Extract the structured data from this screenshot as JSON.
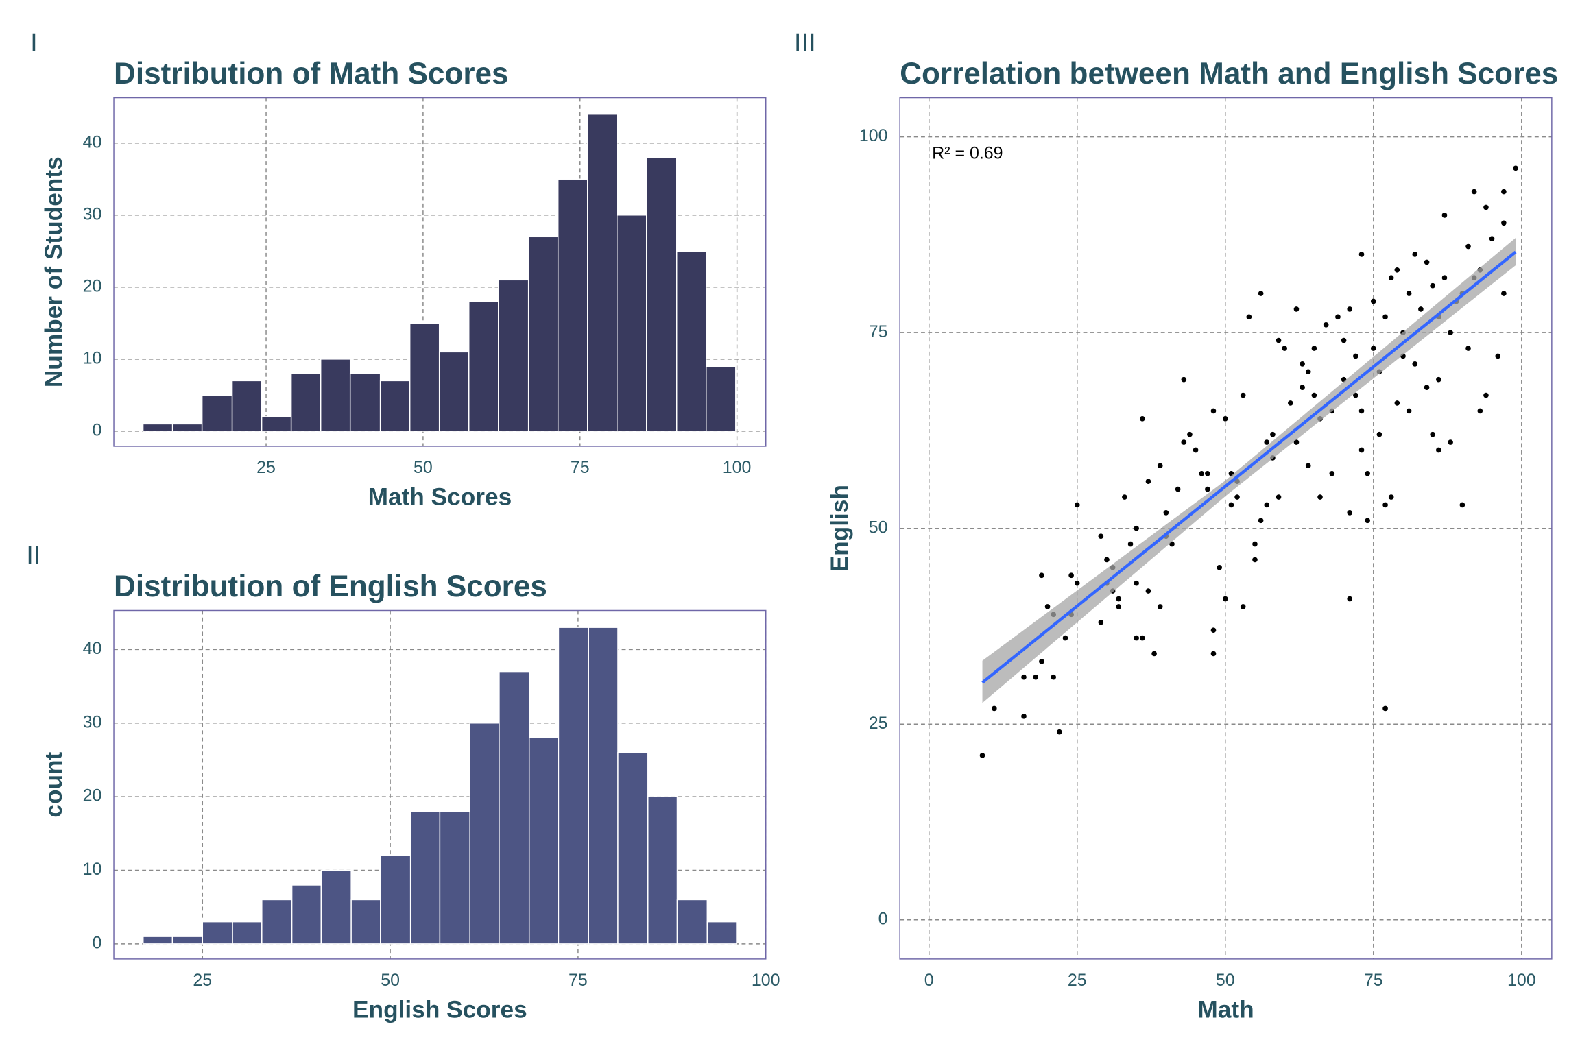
{
  "chart_data": [
    {
      "type": "histogram",
      "tag": "I",
      "title": "Distribution of Math Scores",
      "x_label": "Math Scores",
      "y_label": "Number of Students",
      "color": "#393a5e",
      "bins": [
        5.4,
        10.1,
        14.8,
        19.6,
        24.3,
        29.0,
        33.7,
        38.4,
        43.2,
        47.9,
        52.6,
        57.3,
        62.0,
        66.8,
        71.5,
        76.2,
        80.9,
        85.6,
        90.4,
        95.1,
        99.8
      ],
      "values": [
        1,
        1,
        5,
        7,
        2,
        8,
        10,
        8,
        7,
        15,
        11,
        18,
        21,
        27,
        35,
        44,
        30,
        38,
        25,
        9
      ],
      "xlim": [
        0.75,
        104.6
      ],
      "ylim": [
        -2.1,
        46.3
      ],
      "xticks": [
        25,
        50,
        75,
        100
      ],
      "yticks": [
        0,
        10,
        20,
        30,
        40
      ],
      "grid": true
    },
    {
      "type": "histogram",
      "tag": "II",
      "title": "Distribution of English Scores",
      "x_label": "English Scores",
      "y_label": "count",
      "color": "#4d5584",
      "bins": [
        17.1,
        21.0,
        25.0,
        29.0,
        32.9,
        36.9,
        40.8,
        44.8,
        48.7,
        52.7,
        56.6,
        60.6,
        64.5,
        68.5,
        72.4,
        76.4,
        80.3,
        84.3,
        88.2,
        92.2,
        96.1
      ],
      "values": [
        1,
        1,
        3,
        3,
        6,
        8,
        10,
        6,
        12,
        18,
        18,
        30,
        37,
        28,
        43,
        43,
        26,
        20,
        6,
        3
      ],
      "xlim": [
        13.2,
        100
      ],
      "ylim": [
        -2.05,
        45.3
      ],
      "xticks": [
        25,
        50,
        75,
        100
      ],
      "yticks": [
        0,
        10,
        20,
        30,
        40
      ],
      "grid": true
    },
    {
      "type": "scatter",
      "tag": "III",
      "title": "Correlation between Math and English Scores",
      "x_label": "Math",
      "y_label": "English",
      "color": "#000000",
      "annotation": "R² = 0.69",
      "x": [
        9,
        11,
        16,
        16,
        18,
        19,
        19,
        20,
        21,
        21,
        22,
        23,
        24,
        24,
        25,
        25,
        29,
        29,
        30,
        30,
        31,
        31,
        32,
        32,
        33,
        34,
        35,
        35,
        35,
        36,
        36,
        37,
        37,
        38,
        39,
        39,
        40,
        40,
        41,
        42,
        43,
        43,
        44,
        45,
        46,
        47,
        47,
        48,
        48,
        48,
        49,
        50,
        50,
        51,
        51,
        52,
        52,
        53,
        53,
        54,
        55,
        55,
        56,
        56,
        57,
        57,
        58,
        58,
        59,
        59,
        60,
        61,
        62,
        62,
        63,
        63,
        64,
        64,
        65,
        65,
        66,
        66,
        67,
        68,
        68,
        69,
        70,
        70,
        71,
        71,
        71,
        72,
        72,
        73,
        73,
        73,
        74,
        74,
        75,
        75,
        76,
        76,
        77,
        77,
        77,
        78,
        78,
        79,
        79,
        80,
        80,
        81,
        81,
        82,
        82,
        83,
        84,
        84,
        85,
        85,
        86,
        86,
        86,
        87,
        87,
        88,
        88,
        89,
        90,
        90,
        91,
        91,
        92,
        92,
        93,
        93,
        94,
        94,
        95,
        96,
        97,
        97,
        97,
        99
      ],
      "y": [
        21,
        27,
        26,
        31,
        31,
        33,
        44,
        40,
        39,
        31,
        24,
        36,
        39,
        44,
        53,
        43,
        38,
        49,
        43,
        46,
        42,
        45,
        41,
        40,
        54,
        48,
        50,
        36,
        43,
        36,
        64,
        42,
        56,
        34,
        58,
        40,
        49,
        52,
        48,
        55,
        69,
        61,
        62,
        60,
        57,
        55,
        57,
        65,
        37,
        34,
        45,
        64,
        41,
        53,
        57,
        54,
        56,
        40,
        67,
        77,
        46,
        48,
        80,
        51,
        61,
        53,
        62,
        59,
        54,
        74,
        73,
        66,
        78,
        61,
        68,
        71,
        70,
        58,
        67,
        73,
        54,
        64,
        76,
        65,
        57,
        77,
        69,
        74,
        41,
        52,
        78,
        72,
        67,
        85,
        65,
        60,
        51,
        57,
        79,
        73,
        70,
        62,
        27,
        53,
        77,
        82,
        54,
        83,
        66,
        75,
        72,
        80,
        65,
        71,
        85,
        78,
        84,
        68,
        81,
        62,
        77,
        69,
        60,
        90,
        82,
        75,
        61,
        79,
        53,
        80,
        86,
        73,
        93,
        82,
        83,
        65,
        67,
        91,
        87,
        72,
        80,
        93,
        89,
        96
      ],
      "fit": {
        "color": "#3366ff",
        "x": [
          9,
          99
        ],
        "y": [
          30.3,
          85.3
        ]
      },
      "band": {
        "color": "#a6a6a6",
        "x": [
          9,
          50,
          99
        ],
        "lower": [
          27.7,
          54.1,
          83.6
        ],
        "upper": [
          33.1,
          56.1,
          87.1
        ]
      },
      "xlim": [
        -4.93,
        105.1
      ],
      "ylim": [
        -5.0,
        105.0
      ],
      "xticks": [
        0,
        25,
        50,
        75,
        100
      ],
      "yticks": [
        0,
        25,
        50,
        75,
        100
      ],
      "grid": true
    }
  ]
}
